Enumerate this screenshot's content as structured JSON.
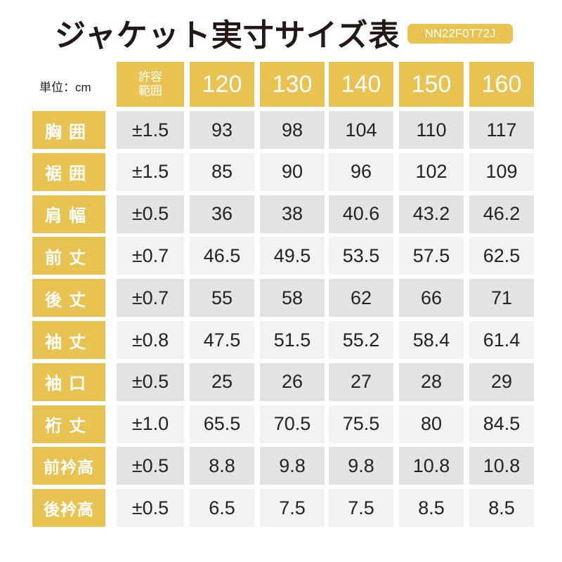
{
  "title": "ジャケット実寸サイズ表",
  "product_code": "NN22F0T72J",
  "unit_label": "単位：cm",
  "tolerance_header": [
    "許容",
    "範囲"
  ],
  "sizes": [
    "120",
    "130",
    "140",
    "150",
    "160"
  ],
  "rows": [
    {
      "label": "胸囲",
      "tol": "±1.5",
      "values": [
        "93",
        "98",
        "104",
        "110",
        "117"
      ]
    },
    {
      "label": "裾囲",
      "tol": "±1.5",
      "values": [
        "85",
        "90",
        "96",
        "102",
        "109"
      ]
    },
    {
      "label": "肩幅",
      "tol": "±0.5",
      "values": [
        "36",
        "38",
        "40.6",
        "43.2",
        "46.2"
      ]
    },
    {
      "label": "前丈",
      "tol": "±0.7",
      "values": [
        "46.5",
        "49.5",
        "53.5",
        "57.5",
        "62.5"
      ]
    },
    {
      "label": "後丈",
      "tol": "±0.7",
      "values": [
        "55",
        "58",
        "62",
        "66",
        "71"
      ]
    },
    {
      "label": "袖丈",
      "tol": "±0.8",
      "values": [
        "47.5",
        "51.5",
        "55.2",
        "58.4",
        "61.4"
      ]
    },
    {
      "label": "袖口",
      "tol": "±0.5",
      "values": [
        "25",
        "26",
        "27",
        "28",
        "29"
      ]
    },
    {
      "label": "裄丈",
      "tol": "±1.0",
      "values": [
        "65.5",
        "70.5",
        "75.5",
        "80",
        "84.5"
      ]
    },
    {
      "label": "前衿高",
      "tol": "±0.5",
      "values": [
        "8.8",
        "9.8",
        "9.8",
        "10.8",
        "10.8"
      ]
    },
    {
      "label": "後衿高",
      "tol": "±0.5",
      "values": [
        "6.5",
        "7.5",
        "7.5",
        "8.5",
        "8.5"
      ]
    }
  ],
  "colors": {
    "accent": "#e8c352",
    "row_dark": "#e3e3e3",
    "row_light": "#f2f2f2"
  }
}
